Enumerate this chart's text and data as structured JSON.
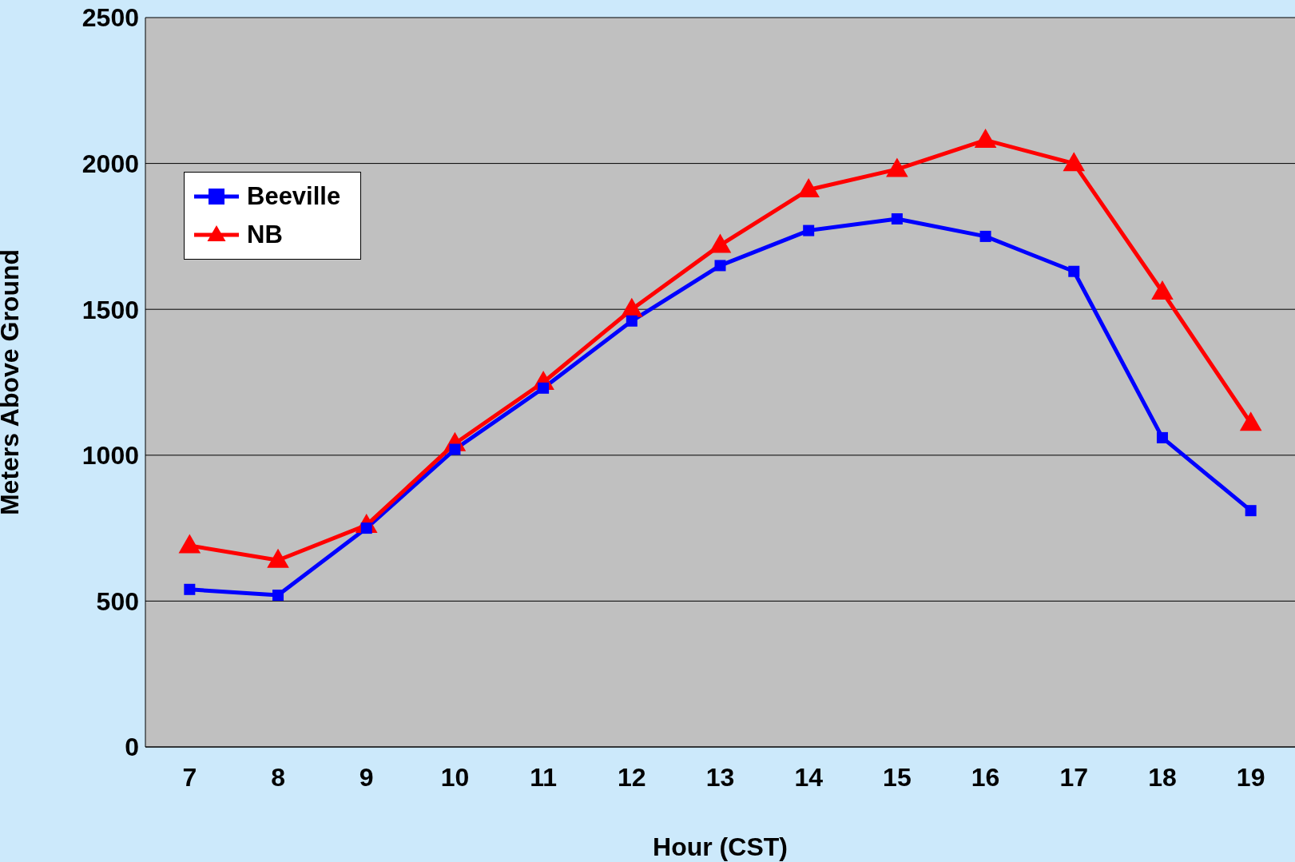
{
  "chart_data": {
    "type": "line",
    "xlabel": "Hour (CST)",
    "ylabel": "Meters Above Ground",
    "categories": [
      "7",
      "8",
      "9",
      "10",
      "11",
      "12",
      "13",
      "14",
      "15",
      "16",
      "17",
      "18",
      "19"
    ],
    "ylim": [
      0,
      2500
    ],
    "yticks": [
      0,
      500,
      1000,
      1500,
      2000,
      2500
    ],
    "grid": "y",
    "legend": "top left",
    "series": [
      {
        "name": "Beeville",
        "color": "#0000ff",
        "marker": "square",
        "values": [
          540,
          520,
          750,
          1020,
          1230,
          1460,
          1650,
          1770,
          1810,
          1750,
          1630,
          1060,
          810
        ]
      },
      {
        "name": "NB",
        "color": "#ff0000",
        "marker": "triangle",
        "values": [
          690,
          640,
          760,
          1040,
          1250,
          1500,
          1720,
          1910,
          1980,
          2080,
          2000,
          1560,
          1110
        ]
      }
    ]
  }
}
